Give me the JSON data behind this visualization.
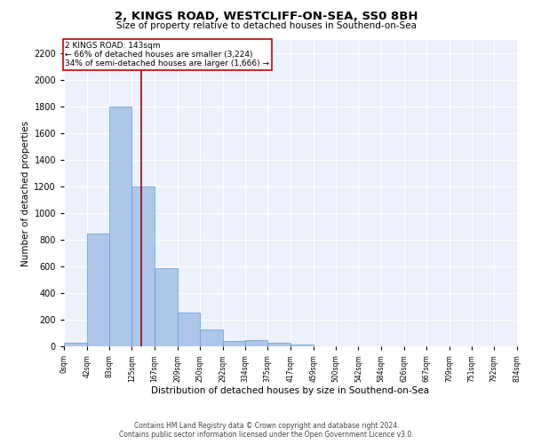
{
  "title": "2, KINGS ROAD, WESTCLIFF-ON-SEA, SS0 8BH",
  "subtitle": "Size of property relative to detached houses in Southend-on-Sea",
  "xlabel": "Distribution of detached houses by size in Southend-on-Sea",
  "ylabel": "Number of detached properties",
  "footnote1": "Contains HM Land Registry data © Crown copyright and database right 2024.",
  "footnote2": "Contains public sector information licensed under the Open Government Licence v3.0.",
  "annotation_line1": "2 KINGS ROAD: 143sqm",
  "annotation_line2": "← 66% of detached houses are smaller (3,224)",
  "annotation_line3": "34% of semi-detached houses are larger (1,666) →",
  "property_size": 143,
  "bar_edges": [
    0,
    42,
    83,
    125,
    167,
    209,
    250,
    292,
    334,
    375,
    417,
    459,
    500,
    542,
    584,
    626,
    667,
    709,
    751,
    792,
    834
  ],
  "bar_heights": [
    25,
    845,
    1800,
    1200,
    585,
    255,
    130,
    40,
    45,
    30,
    15,
    0,
    0,
    0,
    0,
    0,
    0,
    0,
    0,
    0
  ],
  "bar_color": "#aec6e8",
  "bar_edge_color": "#5a9fd4",
  "red_line_color": "#9b0000",
  "annotation_box_edgecolor": "#cc0000",
  "plot_bg_color": "#edf1fb",
  "grid_color": "#ffffff",
  "ylim": [
    0,
    2300
  ],
  "yticks": [
    0,
    200,
    400,
    600,
    800,
    1000,
    1200,
    1400,
    1600,
    1800,
    2000,
    2200
  ],
  "tick_labels": [
    "0sqm",
    "42sqm",
    "83sqm",
    "125sqm",
    "167sqm",
    "209sqm",
    "250sqm",
    "292sqm",
    "334sqm",
    "375sqm",
    "417sqm",
    "459sqm",
    "500sqm",
    "542sqm",
    "584sqm",
    "626sqm",
    "667sqm",
    "709sqm",
    "751sqm",
    "792sqm",
    "834sqm"
  ]
}
